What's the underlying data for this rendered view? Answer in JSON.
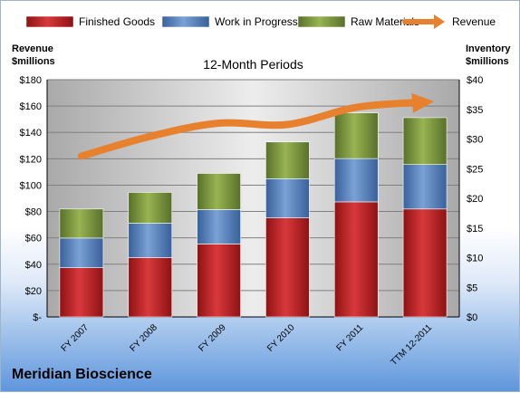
{
  "chart_data": {
    "type": "bar",
    "stacked": true,
    "subtitle": "12-Month Periods",
    "categories": [
      "FY 2007",
      "FY 2008",
      "FY 2009",
      "FY 2010",
      "FY 2011",
      "TTM 12-2011"
    ],
    "y_left": {
      "label_line1": "Revenue",
      "label_line2": "$millions",
      "ylim": [
        0,
        180
      ],
      "ticks": [
        "$-",
        "$20",
        "$40",
        "$60",
        "$80",
        "$100",
        "$120",
        "$140",
        "$160",
        "$180"
      ]
    },
    "y_right": {
      "label_line1": "Inventory",
      "label_line2": "$millions",
      "ylim": [
        0,
        40
      ],
      "ticks": [
        "$0",
        "$5",
        "$10",
        "$15",
        "$20",
        "$25",
        "$30",
        "$35",
        "$40"
      ]
    },
    "series": [
      {
        "name": "Finished Goods",
        "axis": "right",
        "color": "#c0282a",
        "values": [
          8.3,
          10.0,
          12.3,
          16.7,
          19.4,
          18.2
        ]
      },
      {
        "name": "Work in Progress",
        "axis": "right",
        "color": "#5a84bf",
        "values": [
          5.0,
          5.8,
          5.8,
          6.6,
          7.3,
          7.5
        ]
      },
      {
        "name": "Raw Materials",
        "axis": "right",
        "color": "#7e9a3c",
        "values": [
          4.9,
          5.2,
          6.1,
          6.2,
          7.7,
          7.9
        ]
      },
      {
        "name": "Revenue",
        "axis": "left",
        "type": "line",
        "color": "#e7812d",
        "values": [
          122,
          137,
          147,
          146,
          159,
          163
        ]
      }
    ],
    "grid": true,
    "legend": "top"
  },
  "company_name": "Meridian Bioscience"
}
